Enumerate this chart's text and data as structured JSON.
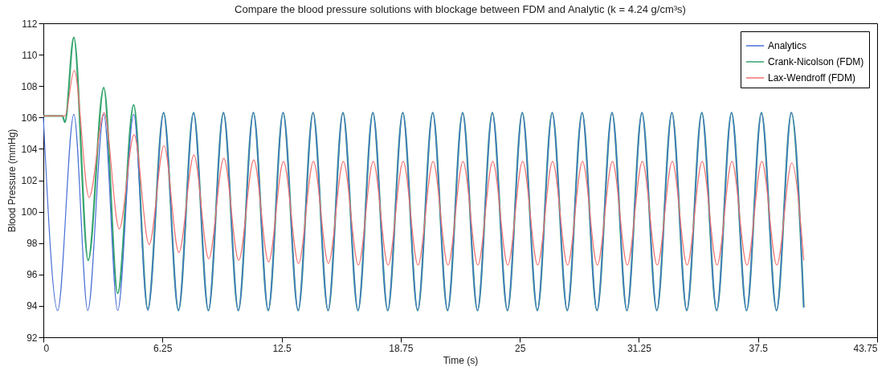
{
  "chart_data": {
    "type": "line",
    "title": "Compare the blood pressure solutions with blockage between FDM and Analytic (k = 4.24 g/cm³s)",
    "xlabel": "Time (s)",
    "ylabel": "Blood Pressure (mmHg)",
    "xlim": [
      0,
      43.75
    ],
    "ylim": [
      92,
      112
    ],
    "xticks": [
      0,
      6.25,
      12.5,
      18.75,
      25,
      31.25,
      37.5,
      43.75
    ],
    "yticks": [
      92,
      94,
      96,
      98,
      100,
      102,
      104,
      106,
      108,
      110,
      112
    ],
    "legend": "top right",
    "series": [
      {
        "name": "Analytics",
        "color": "#4a6fd8",
        "x": [
          0,
          0.75,
          1.6,
          2.33,
          3.17,
          3.9,
          4.74,
          5.48,
          6.31,
          7.09,
          7.88,
          8.66,
          9.45,
          10.23,
          11.02,
          11.8,
          12.58,
          13.37,
          14.15,
          14.94,
          15.72,
          16.51,
          17.29,
          18.07,
          18.86,
          19.64,
          20.43,
          21.21,
          22.0,
          22.78,
          23.56,
          24.35,
          25.13,
          25.92,
          26.7,
          27.49,
          28.27,
          29.05,
          29.84,
          30.62,
          31.41,
          32.19,
          32.98,
          33.76,
          34.55,
          35.33,
          36.11,
          36.9,
          37.68,
          38.47,
          39.25,
          39.9
        ],
        "values": [
          106.0,
          93.7,
          106.2,
          93.7,
          106.2,
          93.7,
          106.2,
          93.7,
          106.3,
          93.7,
          106.3,
          93.7,
          106.3,
          93.7,
          106.3,
          93.7,
          106.3,
          93.7,
          106.3,
          93.7,
          106.3,
          93.7,
          106.3,
          93.7,
          106.3,
          93.7,
          106.3,
          93.7,
          106.3,
          93.7,
          106.3,
          93.7,
          106.3,
          93.7,
          106.3,
          93.7,
          106.3,
          93.7,
          106.3,
          93.7,
          106.3,
          93.7,
          106.3,
          93.7,
          106.3,
          93.7,
          106.3,
          93.7,
          106.3,
          93.7,
          106.3,
          93.9
        ]
      },
      {
        "name": "Crank-Nicolson (FDM)",
        "color": "#35a56e",
        "x": [
          0,
          1.0,
          1.13,
          1.6,
          2.35,
          3.17,
          3.9,
          4.74,
          5.48,
          6.31,
          7.09,
          7.88,
          8.66,
          9.45,
          10.23,
          11.02,
          11.8,
          12.58,
          13.37,
          14.15,
          14.94,
          15.72,
          16.51,
          17.29,
          18.07,
          18.86,
          19.64,
          20.43,
          21.21,
          22.0,
          22.78,
          23.56,
          24.35,
          25.13,
          25.92,
          26.7,
          27.49,
          28.27,
          29.05,
          29.84,
          30.62,
          31.41,
          32.19,
          32.98,
          33.76,
          34.55,
          35.33,
          36.11,
          36.9,
          37.68,
          38.47,
          39.25,
          39.9
        ],
        "values": [
          106.1,
          106.1,
          105.7,
          111.1,
          96.9,
          107.9,
          94.8,
          106.8,
          93.8,
          106.3,
          93.7,
          106.3,
          93.7,
          106.3,
          93.7,
          106.3,
          93.7,
          106.3,
          93.7,
          106.3,
          93.7,
          106.3,
          93.7,
          106.3,
          93.7,
          106.3,
          93.7,
          106.3,
          93.7,
          106.3,
          93.7,
          106.3,
          93.7,
          106.3,
          93.7,
          106.3,
          93.7,
          106.3,
          93.7,
          106.3,
          93.7,
          106.3,
          93.7,
          106.3,
          93.7,
          106.3,
          93.7,
          106.3,
          93.7,
          106.3,
          93.7,
          106.3,
          93.9
        ]
      },
      {
        "name": "Lax-Wendroff (FDM)",
        "color": "#f27272",
        "x": [
          0,
          1.13,
          1.62,
          2.4,
          3.19,
          3.98,
          4.76,
          5.55,
          6.33,
          7.11,
          7.9,
          8.68,
          9.47,
          10.25,
          11.04,
          11.82,
          12.6,
          13.39,
          14.17,
          14.96,
          15.74,
          16.53,
          17.31,
          18.09,
          18.88,
          19.66,
          20.45,
          21.23,
          22.02,
          22.8,
          23.58,
          24.37,
          25.15,
          25.94,
          26.72,
          27.51,
          28.29,
          29.07,
          29.86,
          30.64,
          31.43,
          32.21,
          33.0,
          33.78,
          34.57,
          35.35,
          36.13,
          36.92,
          37.7,
          38.49,
          39.27,
          39.9
        ],
        "values": [
          106.1,
          106.1,
          109.0,
          100.9,
          106.3,
          98.9,
          104.9,
          97.9,
          104.2,
          97.4,
          103.6,
          97.0,
          103.4,
          96.9,
          103.3,
          96.8,
          103.2,
          96.7,
          103.2,
          96.7,
          103.2,
          96.6,
          103.2,
          96.6,
          103.2,
          96.6,
          103.2,
          96.6,
          103.2,
          96.6,
          103.2,
          96.6,
          103.2,
          96.6,
          103.2,
          96.6,
          103.2,
          96.6,
          103.2,
          96.6,
          103.2,
          96.6,
          103.2,
          96.6,
          103.2,
          96.6,
          103.2,
          96.6,
          103.2,
          96.6,
          103.1,
          96.9
        ]
      }
    ]
  }
}
